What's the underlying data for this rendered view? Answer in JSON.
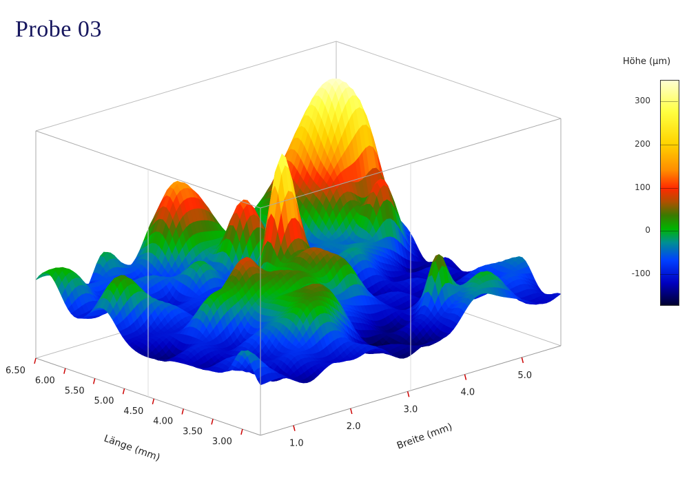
{
  "title": "Probe 03",
  "chart_data": {
    "type": "surface3d",
    "title": "Probe 03",
    "colorbar": {
      "label": "Höhe (µm)",
      "ticks": [
        "300",
        "200",
        "100",
        "0",
        "-100"
      ],
      "range": [
        -170,
        350
      ]
    },
    "x_axis": {
      "label": "Länge (mm)",
      "ticks": [
        "6.50",
        "6.00",
        "5.50",
        "5.00",
        "4.50",
        "4.00",
        "3.50",
        "3.00"
      ]
    },
    "y_axis": {
      "label": "Breite (mm)",
      "ticks": [
        "1.0",
        "2.0",
        "3.0",
        "4.0",
        "5.0"
      ]
    },
    "z_range": [
      -170,
      350
    ],
    "grid": "box"
  }
}
